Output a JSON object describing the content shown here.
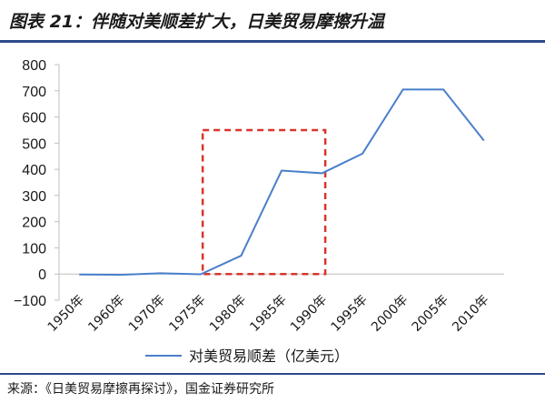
{
  "figure": {
    "title": "图表 21：伴随对美顺差扩大，日美贸易摩擦升温",
    "source": "来源：《日美贸易摩擦再探讨》，国金证券研究所"
  },
  "colors": {
    "series": "#4a7fcb",
    "highlight_box": "#d9342b",
    "axis": "#bfbfbf",
    "text": "#1a1a1a",
    "rule": "#2b4a8b"
  },
  "chart_data": {
    "type": "line",
    "title": "",
    "xlabel": "",
    "ylabel": "",
    "categories": [
      "1950年",
      "1960年",
      "1970年",
      "1975年",
      "1980年",
      "1985年",
      "1990年",
      "1995年",
      "2000年",
      "2005年",
      "2010年"
    ],
    "series": [
      {
        "name": "对美贸易顺差（亿美元）",
        "values": [
          -2,
          -3,
          3,
          -1,
          70,
          395,
          385,
          460,
          705,
          705,
          510
        ]
      }
    ],
    "y_ticks": [
      "800",
      "700",
      "600",
      "500",
      "400",
      "300",
      "200",
      "100",
      "0",
      "−100"
    ],
    "ylim": [
      -100,
      800
    ],
    "grid": false,
    "legend": "bottom",
    "annotation": {
      "type": "dashed-rectangle",
      "x_from": "1975年",
      "x_to": "1990年",
      "y_from": 0,
      "y_to": 550
    }
  }
}
